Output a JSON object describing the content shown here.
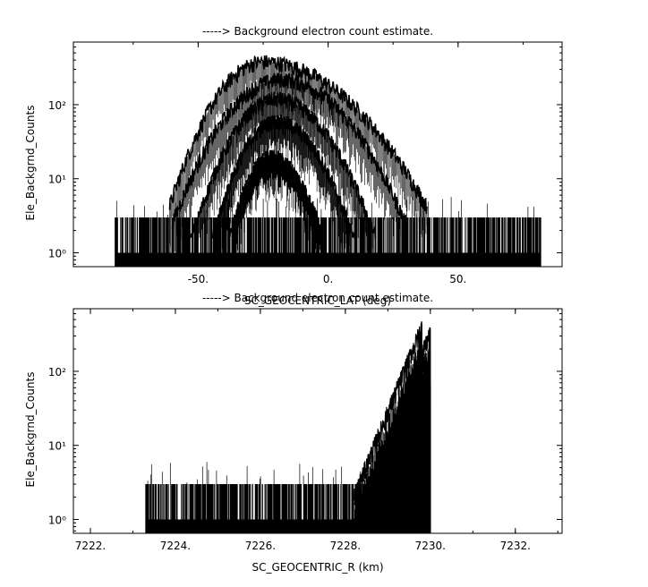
{
  "chart_data": [
    {
      "type": "line",
      "title": "-----> Background electron count estimate.",
      "xlabel": "SC_GEOCENTRIC_LAT (deg)",
      "ylabel": "Ele_Backgrnd_Counts",
      "xlim": [
        -98,
        90
      ],
      "ylim": [
        0.65,
        700
      ],
      "yscale": "log",
      "xticks": [
        -50,
        0,
        50
      ],
      "xtick_labels": [
        "-50.",
        "0.",
        "50."
      ],
      "yticks": [
        1,
        10,
        100
      ],
      "ytick_labels": [
        "10⁰",
        "10¹",
        "10²"
      ],
      "grid": false,
      "color": "#000000",
      "noise": {
        "x_range": [
          -82,
          82
        ],
        "level": [
          1,
          3
        ],
        "spikes_to": 6
      },
      "series": [
        {
          "center": -25,
          "peak": 380,
          "width_left": 12,
          "width_right": 21
        },
        {
          "center": -18,
          "peak": 220,
          "width_left": 14,
          "width_right": 16
        },
        {
          "center": -20,
          "peak": 120,
          "width_left": 11,
          "width_right": 13
        },
        {
          "center": -20,
          "peak": 60,
          "width_left": 9,
          "width_right": 11
        },
        {
          "center": -22,
          "peak": 20,
          "width_left": 7,
          "width_right": 9
        }
      ]
    },
    {
      "type": "line",
      "title": "-----> Background electron count estimate.",
      "xlabel": "SC_GEOCENTRIC_R (km)",
      "ylabel": "Ele_Backgrnd_Counts",
      "xlim": [
        7221.6,
        7233.1
      ],
      "ylim": [
        0.65,
        700
      ],
      "yscale": "log",
      "xticks": [
        7222,
        7224,
        7226,
        7228,
        7230,
        7232
      ],
      "xtick_labels": [
        "7222.",
        "7224.",
        "7226.",
        "7228.",
        "7230.",
        "7232."
      ],
      "yticks": [
        1,
        10,
        100
      ],
      "ytick_labels": [
        "10⁰",
        "10¹",
        "10²"
      ],
      "grid": false,
      "color": "#000000",
      "noise": {
        "x_range": [
          7223.3,
          7230.0
        ],
        "level": [
          1,
          3
        ],
        "spikes_to": 6
      },
      "series": [
        {
          "x_start": 7228.2,
          "x_end": 7229.8,
          "peak": 400
        },
        {
          "x_start": 7228.5,
          "x_end": 7230.0,
          "peak": 330
        },
        {
          "x_start": 7228.6,
          "x_end": 7229.9,
          "peak": 150
        },
        {
          "x_start": 7228.9,
          "x_end": 7230.0,
          "peak": 60
        }
      ]
    }
  ]
}
